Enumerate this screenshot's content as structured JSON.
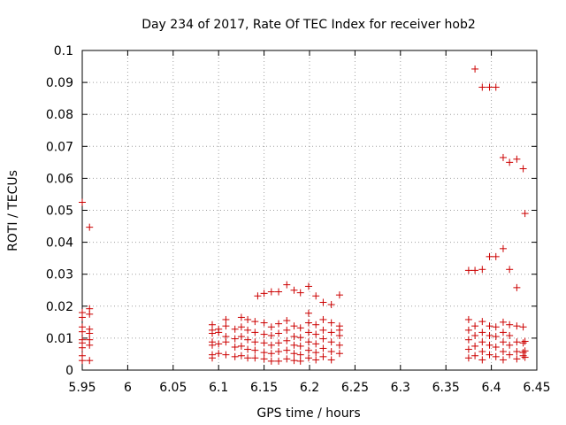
{
  "chart_data": {
    "type": "scatter",
    "title": "Day 234 of 2017, Rate Of TEC Index for receiver hob2",
    "xlabel": "GPS time / hours",
    "ylabel": "ROTI / TECUs",
    "xlim": [
      5.95,
      6.45
    ],
    "ylim": [
      0,
      0.1
    ],
    "xticks": [
      5.95,
      6.0,
      6.05,
      6.1,
      6.15,
      6.2,
      6.25,
      6.3,
      6.35,
      6.4,
      6.45
    ],
    "xtick_labels": [
      "5.95",
      "6",
      "6.05",
      "6.1",
      "6.15",
      "6.2",
      "6.25",
      "6.3",
      "6.35",
      "6.4",
      "6.45"
    ],
    "yticks": [
      0,
      0.01,
      0.02,
      0.03,
      0.04,
      0.05,
      0.06,
      0.07,
      0.08,
      0.09,
      0.1
    ],
    "ytick_labels": [
      "0",
      "0.01",
      "0.02",
      "0.03",
      "0.04",
      "0.05",
      "0.06",
      "0.07",
      "0.08",
      "0.09",
      "0.1"
    ],
    "grid": true,
    "marker": "+",
    "color": "#cc0000",
    "series": [
      {
        "name": "hob2",
        "points": [
          [
            5.95,
            0.0525
          ],
          [
            5.95,
            0.018
          ],
          [
            5.95,
            0.0165
          ],
          [
            5.95,
            0.0135
          ],
          [
            5.95,
            0.012
          ],
          [
            5.95,
            0.0095
          ],
          [
            5.95,
            0.0085
          ],
          [
            5.95,
            0.007
          ],
          [
            5.95,
            0.0045
          ],
          [
            5.95,
            0.003
          ],
          [
            5.958,
            0.0447
          ],
          [
            5.958,
            0.0192
          ],
          [
            5.958,
            0.0175
          ],
          [
            5.958,
            0.0128
          ],
          [
            5.958,
            0.0115
          ],
          [
            5.958,
            0.0095
          ],
          [
            5.958,
            0.0078
          ],
          [
            5.958,
            0.003
          ],
          [
            6.093,
            0.0142
          ],
          [
            6.093,
            0.0125
          ],
          [
            6.093,
            0.0115
          ],
          [
            6.093,
            0.0088
          ],
          [
            6.093,
            0.0078
          ],
          [
            6.093,
            0.0048
          ],
          [
            6.093,
            0.0038
          ],
          [
            6.1,
            0.0128
          ],
          [
            6.1,
            0.0118
          ],
          [
            6.1,
            0.0082
          ],
          [
            6.1,
            0.0052
          ],
          [
            6.108,
            0.0158
          ],
          [
            6.108,
            0.0138
          ],
          [
            6.108,
            0.0105
          ],
          [
            6.108,
            0.0088
          ],
          [
            6.108,
            0.0048
          ],
          [
            6.118,
            0.0128
          ],
          [
            6.118,
            0.0098
          ],
          [
            6.118,
            0.0072
          ],
          [
            6.118,
            0.0042
          ],
          [
            6.125,
            0.0165
          ],
          [
            6.125,
            0.0135
          ],
          [
            6.125,
            0.0105
          ],
          [
            6.125,
            0.0075
          ],
          [
            6.125,
            0.0045
          ],
          [
            6.132,
            0.0158
          ],
          [
            6.132,
            0.0125
          ],
          [
            6.132,
            0.0095
          ],
          [
            6.132,
            0.0065
          ],
          [
            6.132,
            0.0038
          ],
          [
            6.14,
            0.0152
          ],
          [
            6.14,
            0.0118
          ],
          [
            6.14,
            0.0088
          ],
          [
            6.14,
            0.0062
          ],
          [
            6.14,
            0.0038
          ],
          [
            6.143,
            0.0232
          ],
          [
            6.15,
            0.024
          ],
          [
            6.15,
            0.0148
          ],
          [
            6.15,
            0.0112
          ],
          [
            6.15,
            0.0085
          ],
          [
            6.15,
            0.0055
          ],
          [
            6.15,
            0.0035
          ],
          [
            6.158,
            0.0245
          ],
          [
            6.158,
            0.0135
          ],
          [
            6.158,
            0.0108
          ],
          [
            6.158,
            0.0078
          ],
          [
            6.158,
            0.0052
          ],
          [
            6.158,
            0.0028
          ],
          [
            6.166,
            0.0245
          ],
          [
            6.166,
            0.0145
          ],
          [
            6.166,
            0.0115
          ],
          [
            6.166,
            0.0085
          ],
          [
            6.166,
            0.0058
          ],
          [
            6.166,
            0.0028
          ],
          [
            6.175,
            0.0267
          ],
          [
            6.175,
            0.0155
          ],
          [
            6.175,
            0.0125
          ],
          [
            6.175,
            0.0092
          ],
          [
            6.175,
            0.0062
          ],
          [
            6.175,
            0.0035
          ],
          [
            6.183,
            0.025
          ],
          [
            6.183,
            0.0138
          ],
          [
            6.183,
            0.0105
          ],
          [
            6.183,
            0.0078
          ],
          [
            6.183,
            0.0052
          ],
          [
            6.183,
            0.003
          ],
          [
            6.19,
            0.0242
          ],
          [
            6.19,
            0.0132
          ],
          [
            6.19,
            0.0102
          ],
          [
            6.19,
            0.0075
          ],
          [
            6.19,
            0.0048
          ],
          [
            6.19,
            0.0028
          ],
          [
            6.199,
            0.0262
          ],
          [
            6.199,
            0.0178
          ],
          [
            6.199,
            0.0148
          ],
          [
            6.199,
            0.0118
          ],
          [
            6.199,
            0.0088
          ],
          [
            6.199,
            0.0062
          ],
          [
            6.199,
            0.0038
          ],
          [
            6.207,
            0.0232
          ],
          [
            6.207,
            0.0142
          ],
          [
            6.207,
            0.0112
          ],
          [
            6.207,
            0.0082
          ],
          [
            6.207,
            0.0055
          ],
          [
            6.207,
            0.0032
          ],
          [
            6.215,
            0.0212
          ],
          [
            6.215,
            0.0158
          ],
          [
            6.215,
            0.0125
          ],
          [
            6.215,
            0.0098
          ],
          [
            6.215,
            0.0068
          ],
          [
            6.215,
            0.0042
          ],
          [
            6.224,
            0.0205
          ],
          [
            6.224,
            0.0148
          ],
          [
            6.224,
            0.0118
          ],
          [
            6.224,
            0.0088
          ],
          [
            6.224,
            0.0058
          ],
          [
            6.224,
            0.0032
          ],
          [
            6.233,
            0.0235
          ],
          [
            6.233,
            0.0138
          ],
          [
            6.233,
            0.0125
          ],
          [
            6.233,
            0.0108
          ],
          [
            6.233,
            0.0078
          ],
          [
            6.233,
            0.0052
          ],
          [
            6.375,
            0.0312
          ],
          [
            6.375,
            0.0158
          ],
          [
            6.375,
            0.0125
          ],
          [
            6.375,
            0.0095
          ],
          [
            6.375,
            0.0065
          ],
          [
            6.375,
            0.0038
          ],
          [
            6.382,
            0.0942
          ],
          [
            6.382,
            0.0312
          ],
          [
            6.382,
            0.0138
          ],
          [
            6.382,
            0.0108
          ],
          [
            6.382,
            0.0075
          ],
          [
            6.382,
            0.0045
          ],
          [
            6.39,
            0.0885
          ],
          [
            6.39,
            0.0315
          ],
          [
            6.39,
            0.0152
          ],
          [
            6.39,
            0.0118
          ],
          [
            6.39,
            0.0088
          ],
          [
            6.39,
            0.0058
          ],
          [
            6.39,
            0.0032
          ],
          [
            6.398,
            0.0885
          ],
          [
            6.398,
            0.0355
          ],
          [
            6.398,
            0.0138
          ],
          [
            6.398,
            0.0108
          ],
          [
            6.398,
            0.0078
          ],
          [
            6.398,
            0.0048
          ],
          [
            6.405,
            0.0885
          ],
          [
            6.405,
            0.0355
          ],
          [
            6.405,
            0.0135
          ],
          [
            6.405,
            0.0105
          ],
          [
            6.405,
            0.0072
          ],
          [
            6.405,
            0.0042
          ],
          [
            6.413,
            0.0665
          ],
          [
            6.413,
            0.038
          ],
          [
            6.413,
            0.015
          ],
          [
            6.413,
            0.0118
          ],
          [
            6.413,
            0.0088
          ],
          [
            6.413,
            0.0058
          ],
          [
            6.413,
            0.0032
          ],
          [
            6.42,
            0.065
          ],
          [
            6.42,
            0.0315
          ],
          [
            6.42,
            0.0142
          ],
          [
            6.42,
            0.0108
          ],
          [
            6.42,
            0.0078
          ],
          [
            6.42,
            0.0048
          ],
          [
            6.428,
            0.066
          ],
          [
            6.428,
            0.0258
          ],
          [
            6.428,
            0.0138
          ],
          [
            6.428,
            0.0088
          ],
          [
            6.428,
            0.0058
          ],
          [
            6.428,
            0.0035
          ],
          [
            6.435,
            0.063
          ],
          [
            6.435,
            0.0135
          ],
          [
            6.435,
            0.0085
          ],
          [
            6.435,
            0.0055
          ],
          [
            6.435,
            0.0045
          ],
          [
            6.437,
            0.049
          ],
          [
            6.437,
            0.009
          ],
          [
            6.437,
            0.006
          ],
          [
            6.437,
            0.004
          ]
        ]
      }
    ]
  }
}
